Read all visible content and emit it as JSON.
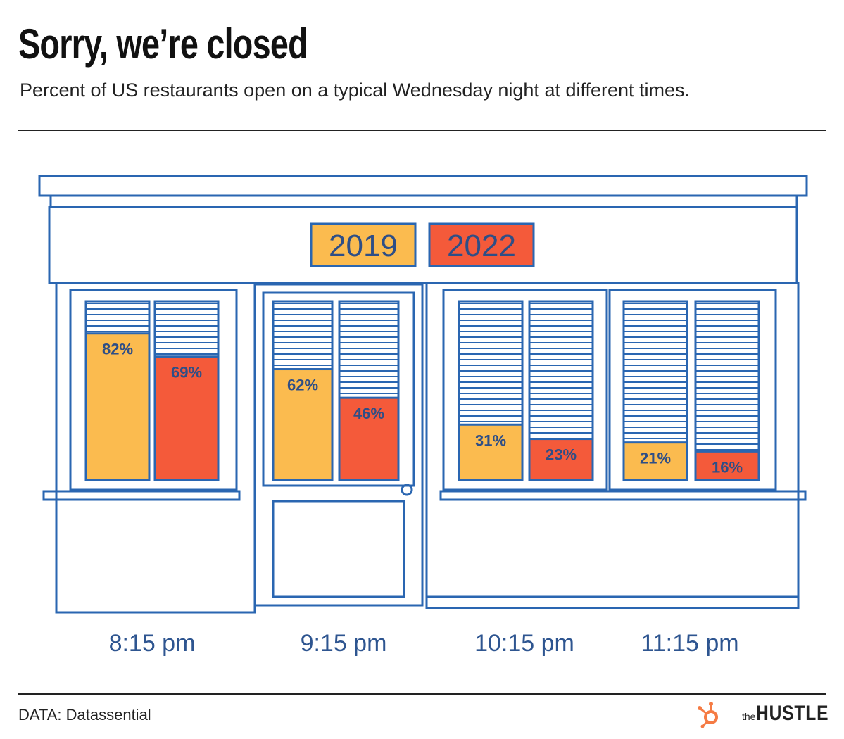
{
  "title": "Sorry, we’re closed",
  "subtitle": "Percent of US restaurants open on a typical Wednesday night at different times.",
  "source": "DATA: Datassential",
  "brand": {
    "prefix": "the",
    "name": "HUSTLE",
    "icon": "hubspot-sprocket-icon"
  },
  "colors": {
    "year_2019": "#FBBB4F",
    "year_2022": "#F45A3A",
    "outline": "#2A66B1",
    "label_text": "#2E4E86",
    "time_label": "#2E5590",
    "blind": "#2A66B1"
  },
  "chart_data": {
    "type": "bar",
    "title": "Sorry, we’re closed",
    "subtitle": "Percent of US restaurants open on a typical Wednesday night at different times.",
    "categories": [
      "8:15 pm",
      "9:15 pm",
      "10:15 pm",
      "11:15 pm"
    ],
    "series": [
      {
        "name": "2019",
        "values": [
          82,
          62,
          31,
          21
        ]
      },
      {
        "name": "2022",
        "values": [
          69,
          46,
          23,
          16
        ]
      }
    ],
    "value_suffix": "%",
    "ylim": [
      0,
      100
    ],
    "grid": false,
    "legend_position": "top-center"
  }
}
